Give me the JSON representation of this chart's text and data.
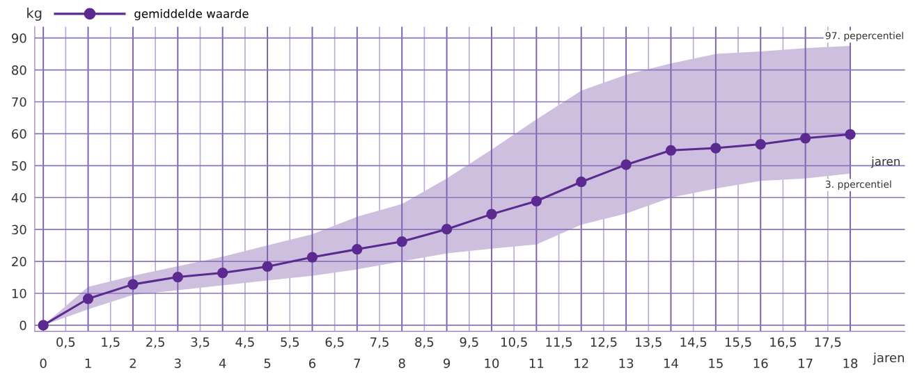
{
  "chart_data": {
    "type": "line",
    "ylabel": "kg",
    "xlabel": "jaren",
    "xlim": [
      -0.19,
      19.22
    ],
    "ylim": [
      -1.9,
      93.5
    ],
    "x": [
      0,
      1,
      2,
      3,
      4,
      5,
      6,
      7,
      8,
      9,
      10,
      11,
      12,
      13,
      14,
      15,
      16,
      17,
      18
    ],
    "series": [
      {
        "name": "gemiddelde waarde",
        "color": "#5b2a90",
        "values": [
          0,
          8.3,
          12.8,
          15.1,
          16.4,
          18.4,
          21.3,
          23.8,
          26.2,
          30.1,
          34.8,
          38.9,
          44.9,
          50.3,
          54.8,
          55.5,
          56.7,
          58.6,
          59.8
        ],
        "lower": [
          0,
          5,
          9.5,
          11,
          12.5,
          14,
          15.5,
          17.5,
          20,
          22.5,
          24,
          25.3,
          31.5,
          35,
          40,
          42.8,
          45.2,
          46,
          47.5
        ],
        "upper": [
          0,
          12,
          15.5,
          18.5,
          21.5,
          25,
          28.5,
          34,
          38,
          46,
          55,
          64.5,
          73.5,
          78.5,
          82,
          85,
          85.8,
          86.8,
          87.5
        ]
      }
    ],
    "xticks": [
      0,
      1,
      2,
      3,
      4,
      5,
      6,
      7,
      8,
      9,
      10,
      11,
      12,
      13,
      14,
      15,
      16,
      17,
      18
    ],
    "x2lim": [
      -0.19,
      19.22
    ],
    "x2ticks": [
      {
        "value": 0.5,
        "label": "0,5"
      },
      {
        "value": 1.5,
        "label": "1,5"
      },
      {
        "value": 2.5,
        "label": "2,5"
      },
      {
        "value": 3.5,
        "label": "3,5"
      },
      {
        "value": 4.5,
        "label": "4,5"
      },
      {
        "value": 5.5,
        "label": "5,5"
      },
      {
        "value": 6.5,
        "label": "6,5"
      },
      {
        "value": 7.5,
        "label": "7,5"
      },
      {
        "value": 8.5,
        "label": "8,5"
      },
      {
        "value": 9.5,
        "label": "9,5"
      },
      {
        "value": 10.5,
        "label": "10,5"
      },
      {
        "value": 11.5,
        "label": "11,5"
      },
      {
        "value": 12.5,
        "label": "12,5"
      },
      {
        "value": 13.5,
        "label": "13,5"
      },
      {
        "value": 14.5,
        "label": "14,5"
      },
      {
        "value": 15.5,
        "label": "15,5"
      },
      {
        "value": 16.5,
        "label": "16,5"
      },
      {
        "value": 17.5,
        "label": "17,5"
      }
    ],
    "yticks": [
      0,
      10,
      20,
      30,
      40,
      50,
      60,
      70,
      80,
      90
    ],
    "grid": true,
    "marker": "circle",
    "line_style": "solid",
    "legend": "top left",
    "annotations": [
      {
        "text": "97. pepercentiel",
        "x": 18,
        "y": 87.5
      },
      "jaren",
      {
        "text": "3. ppercentiel",
        "x": 18,
        "y": 47.5
      }
    ]
  }
}
